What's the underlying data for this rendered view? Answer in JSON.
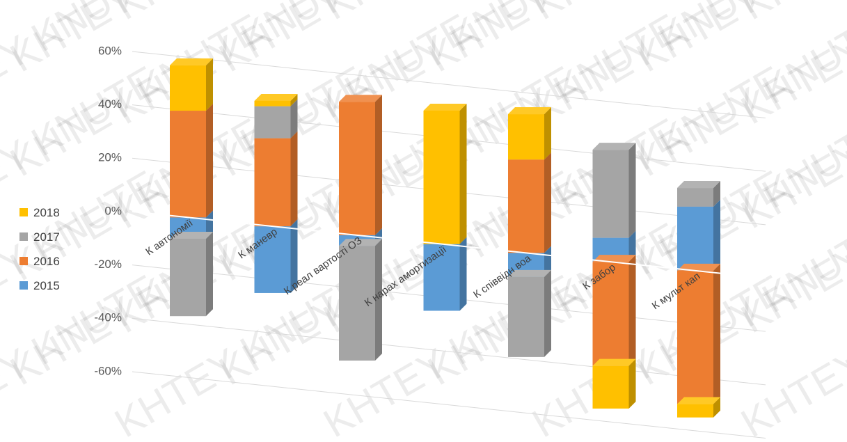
{
  "chart_data": {
    "type": "bar",
    "stacked": true,
    "three_d": true,
    "categories": [
      "К автономії",
      "К маневр",
      "К реал вартості ОЗ",
      "К нарах амортизації",
      "К співвідн воа",
      "К забор",
      "К мульт кап"
    ],
    "series": [
      {
        "name": "2015",
        "color": "#5B9BD5",
        "values": [
          -0.08,
          -0.25,
          -0.04,
          -0.25,
          -0.09,
          0.09,
          0.24
        ]
      },
      {
        "name": "2016",
        "color": "#ED7D31",
        "values": [
          0.4,
          0.33,
          0.5,
          0.0,
          0.35,
          -0.39,
          -0.5
        ]
      },
      {
        "name": "2017",
        "color": "#A5A5A5",
        "values": [
          -0.29,
          0.12,
          -0.43,
          0.0,
          -0.3,
          0.33,
          0.07
        ]
      },
      {
        "name": "2018",
        "color": "#FFC000",
        "values": [
          0.17,
          0.02,
          0.0,
          0.5,
          0.17,
          -0.16,
          -0.05
        ]
      }
    ],
    "yticks": [
      "60%",
      "40%",
      "20%",
      "0%",
      "-20%",
      "-40%",
      "-60%"
    ],
    "ylim": [
      -0.6,
      0.6
    ],
    "grid": true,
    "legend": "left"
  },
  "watermark_text": "KHTEY KNUTE"
}
